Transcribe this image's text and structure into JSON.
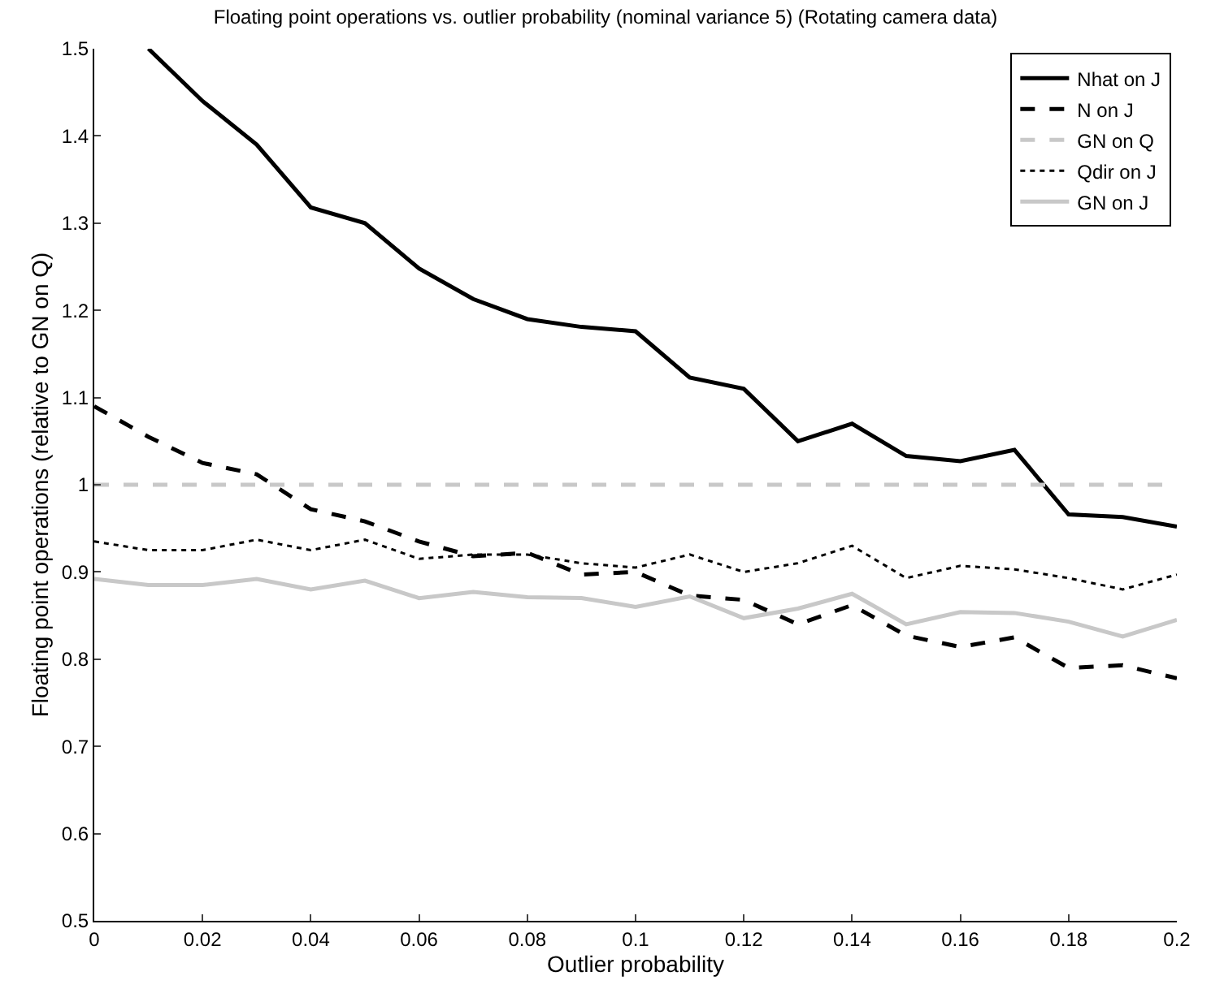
{
  "chart_data": {
    "type": "line",
    "title": "Floating point operations vs. outlier probability (nominal variance 5) (Rotating camera data)",
    "xlabel": "Outlier probability",
    "ylabel": "Floating point operations (relative to GN on Q)",
    "x": [
      0,
      0.01,
      0.02,
      0.03,
      0.04,
      0.05,
      0.06,
      0.07,
      0.08,
      0.09,
      0.1,
      0.11,
      0.12,
      0.13,
      0.14,
      0.15,
      0.16,
      0.17,
      0.18,
      0.19,
      0.2
    ],
    "series": [
      {
        "name": "Nhat on J",
        "color": "#000000",
        "line_style": "solid",
        "values": [
          null,
          1.5,
          1.44,
          1.39,
          1.318,
          1.3,
          1.248,
          1.213,
          1.19,
          1.181,
          1.176,
          1.123,
          1.11,
          1.05,
          1.07,
          1.033,
          1.027,
          1.04,
          0.966,
          0.963,
          0.952
        ]
      },
      {
        "name": "N on J",
        "color": "#000000",
        "line_style": "dashed",
        "values": [
          1.09,
          1.055,
          1.025,
          1.012,
          0.972,
          0.958,
          0.935,
          0.918,
          0.922,
          0.897,
          0.9,
          0.873,
          0.868,
          0.84,
          0.862,
          0.827,
          0.814,
          0.825,
          0.79,
          0.793,
          0.778
        ]
      },
      {
        "name": "GN on Q",
        "color": "#c8c8c8",
        "line_style": "dashed",
        "values": [
          1,
          1,
          1,
          1,
          1,
          1,
          1,
          1,
          1,
          1,
          1,
          1,
          1,
          1,
          1,
          1,
          1,
          1,
          1,
          1,
          1
        ]
      },
      {
        "name": "Qdir on J",
        "color": "#000000",
        "line_style": "dotted",
        "values": [
          0.935,
          0.925,
          0.925,
          0.937,
          0.925,
          0.937,
          0.915,
          0.92,
          0.92,
          0.91,
          0.905,
          0.92,
          0.9,
          0.91,
          0.93,
          0.893,
          0.907,
          0.903,
          0.893,
          0.88,
          0.897
        ]
      },
      {
        "name": "GN on J",
        "color": "#c8c8c8",
        "line_style": "solid",
        "values": [
          0.892,
          0.885,
          0.885,
          0.892,
          0.88,
          0.89,
          0.87,
          0.877,
          0.871,
          0.87,
          0.86,
          0.872,
          0.847,
          0.858,
          0.875,
          0.84,
          0.854,
          0.853,
          0.843,
          0.826,
          0.845
        ]
      }
    ],
    "xlim": [
      0,
      0.2
    ],
    "xticks": [
      0,
      0.02,
      0.04,
      0.06,
      0.08,
      0.1,
      0.12,
      0.14,
      0.16,
      0.18,
      0.2
    ],
    "ylim": [
      0.5,
      1.5
    ],
    "yticks": [
      0.5,
      0.6,
      0.7,
      0.8,
      0.9,
      1,
      1.1,
      1.2,
      1.3,
      1.4,
      1.5
    ],
    "legend": "top right",
    "marker": "none"
  }
}
